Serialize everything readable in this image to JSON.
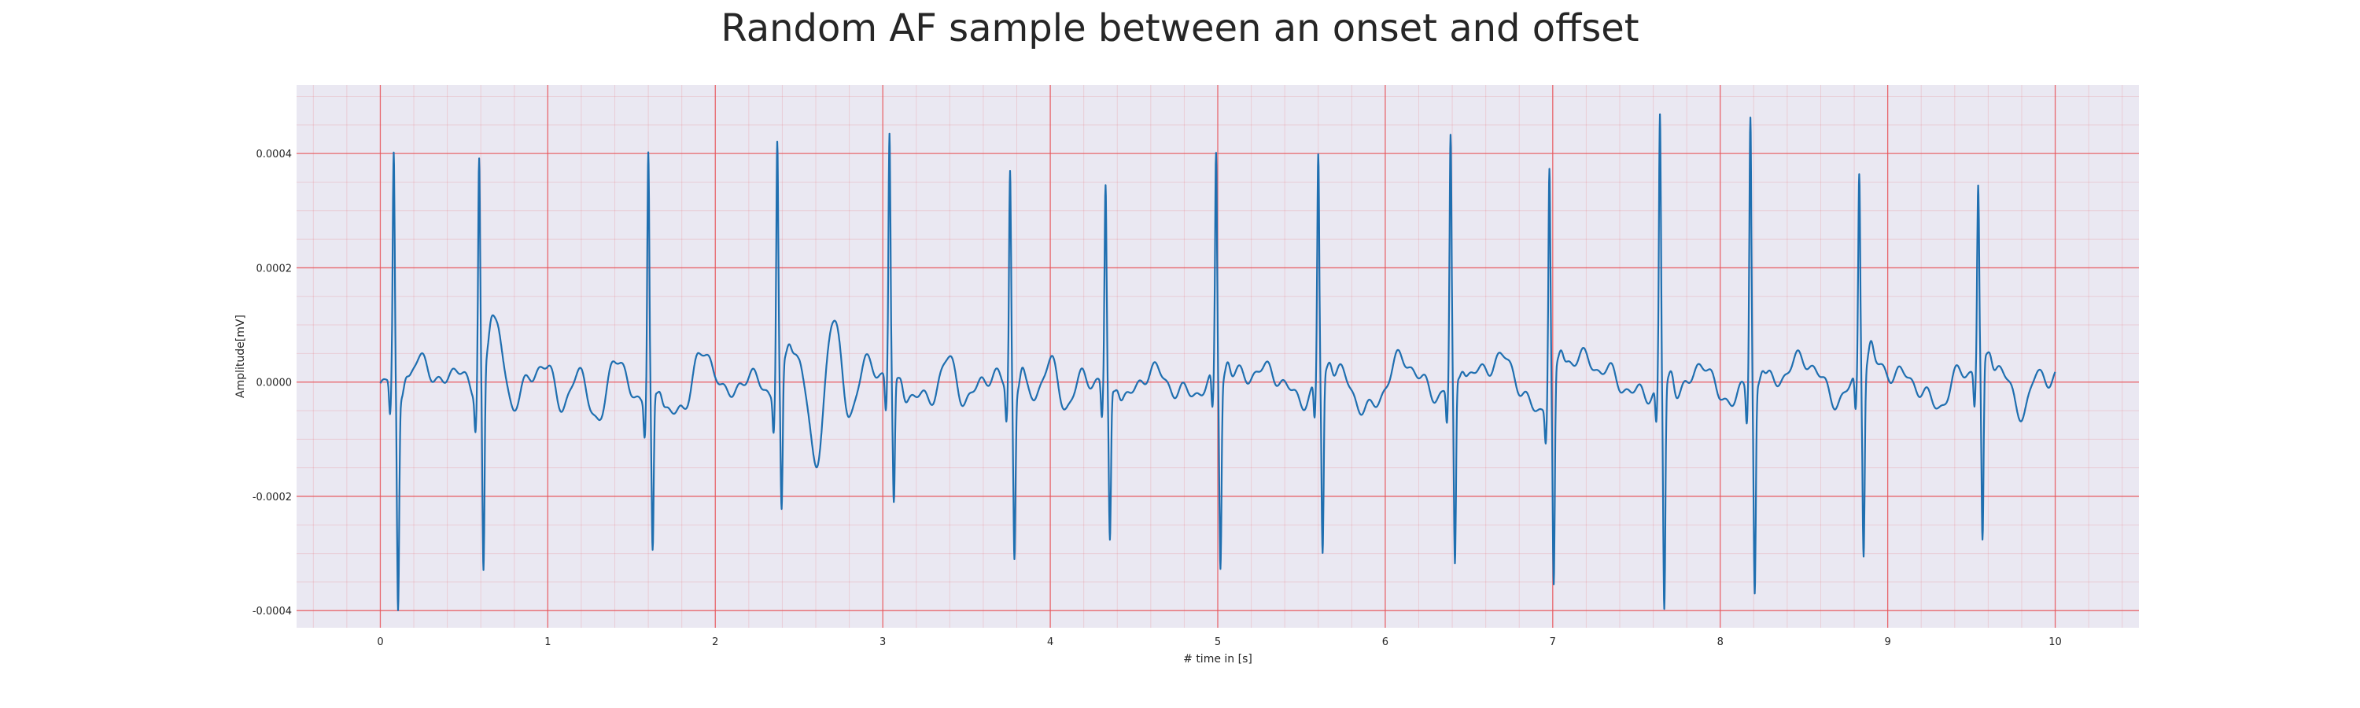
{
  "chart_data": {
    "type": "line",
    "title": "Random AF sample between an onset and offset",
    "xlabel": "# time in [s]",
    "ylabel": "Amplitude[mV]",
    "xlim": [
      -0.5,
      10.5
    ],
    "ylim": [
      -0.00043,
      0.00052
    ],
    "xticks": [
      0,
      1,
      2,
      3,
      4,
      5,
      6,
      7,
      8,
      9,
      10
    ],
    "xtick_labels": [
      "0",
      "1",
      "2",
      "3",
      "4",
      "5",
      "6",
      "7",
      "8",
      "9",
      "10"
    ],
    "yticks": [
      -0.0004,
      -0.0002,
      0.0,
      0.0002,
      0.0004
    ],
    "ytick_labels": [
      "-0.0004",
      "-0.0002",
      "0.0000",
      "0.0002",
      "0.0004"
    ],
    "grid": true,
    "minor_grid": true,
    "line_color": "#1f6fb0",
    "grid_color": "#e8555a",
    "background_color": "#eae8f2",
    "qrs_complexes": [
      {
        "t": 0.08,
        "peak": 0.0004,
        "trough": -0.00038
      },
      {
        "t": 0.59,
        "peak": 0.0004,
        "trough": -0.00035
      },
      {
        "t": 1.6,
        "peak": 0.00043,
        "trough": -0.00028
      },
      {
        "t": 2.37,
        "peak": 0.00043,
        "trough": -0.00025
      },
      {
        "t": 3.04,
        "peak": 0.00043,
        "trough": -0.00022
      },
      {
        "t": 3.76,
        "peak": 0.00038,
        "trough": -0.00029
      },
      {
        "t": 4.33,
        "peak": 0.00035,
        "trough": -0.00027
      },
      {
        "t": 4.99,
        "peak": 0.0004,
        "trough": -0.00032
      },
      {
        "t": 5.6,
        "peak": 0.0004,
        "trough": -0.00031
      },
      {
        "t": 6.39,
        "peak": 0.00043,
        "trough": -0.00033
      },
      {
        "t": 6.98,
        "peak": 0.0004,
        "trough": -0.00037
      },
      {
        "t": 7.64,
        "peak": 0.00048,
        "trough": -0.00039
      },
      {
        "t": 8.18,
        "peak": 0.00048,
        "trough": -0.00036
      },
      {
        "t": 8.83,
        "peak": 0.00036,
        "trough": -0.00031
      },
      {
        "t": 9.54,
        "peak": 0.00032,
        "trough": -0.00032
      }
    ],
    "series": [
      {
        "x": [
          0.0,
          0.05,
          0.15,
          0.25,
          0.35,
          0.45,
          0.55,
          0.7,
          0.8,
          0.9,
          1.0,
          1.1,
          1.2,
          1.3,
          1.4,
          1.5,
          1.7,
          1.8,
          1.9,
          2.0,
          2.1,
          2.2,
          2.3,
          2.5,
          2.6,
          2.7,
          2.8,
          2.9,
          3.2,
          3.3,
          3.4,
          3.5,
          3.6,
          3.9,
          4.0,
          4.1,
          4.2,
          4.45,
          4.6,
          4.8,
          5.1,
          5.3,
          5.5,
          5.7,
          5.9,
          6.1,
          6.3,
          6.5,
          6.7,
          6.9,
          7.1,
          7.2,
          7.3,
          7.5,
          7.8,
          7.9,
          8.0,
          8.3,
          8.5,
          8.7,
          8.9,
          9.1,
          9.3,
          9.45,
          9.65,
          9.8,
          9.9,
          10.0
        ],
        "y": [
          -1e-05,
          0.0,
          -2e-05,
          5e-05,
          -1e-05,
          3e-05,
          -2e-05,
          9e-05,
          -5e-05,
          2e-05,
          2e-05,
          -4e-05,
          2e-05,
          -8e-05,
          5e-05,
          -2e-05,
          -4e-05,
          -6e-05,
          5e-05,
          2e-05,
          -3e-05,
          2e-05,
          -2e-05,
          5e-05,
          -0.00015,
          0.00011,
          -5e-05,
          3e-05,
          -3e-05,
          -2e-05,
          4e-05,
          -4e-05,
          1e-05,
          -2e-05,
          3e-05,
          -4e-05,
          1e-05,
          -3e-05,
          2e-05,
          -2e-05,
          1e-05,
          2e-05,
          -3e-05,
          2e-05,
          -5e-05,
          4e-05,
          -2e-05,
          1e-05,
          4e-05,
          -5e-05,
          4e-05,
          4e-05,
          2e-05,
          -2e-05,
          -1e-05,
          4e-05,
          -3e-05,
          0.0,
          4e-05,
          -3e-05,
          3e-05,
          1e-05,
          -4e-05,
          2e-05,
          3e-05,
          -5e-05,
          1e-05,
          1e-05
        ]
      }
    ]
  }
}
